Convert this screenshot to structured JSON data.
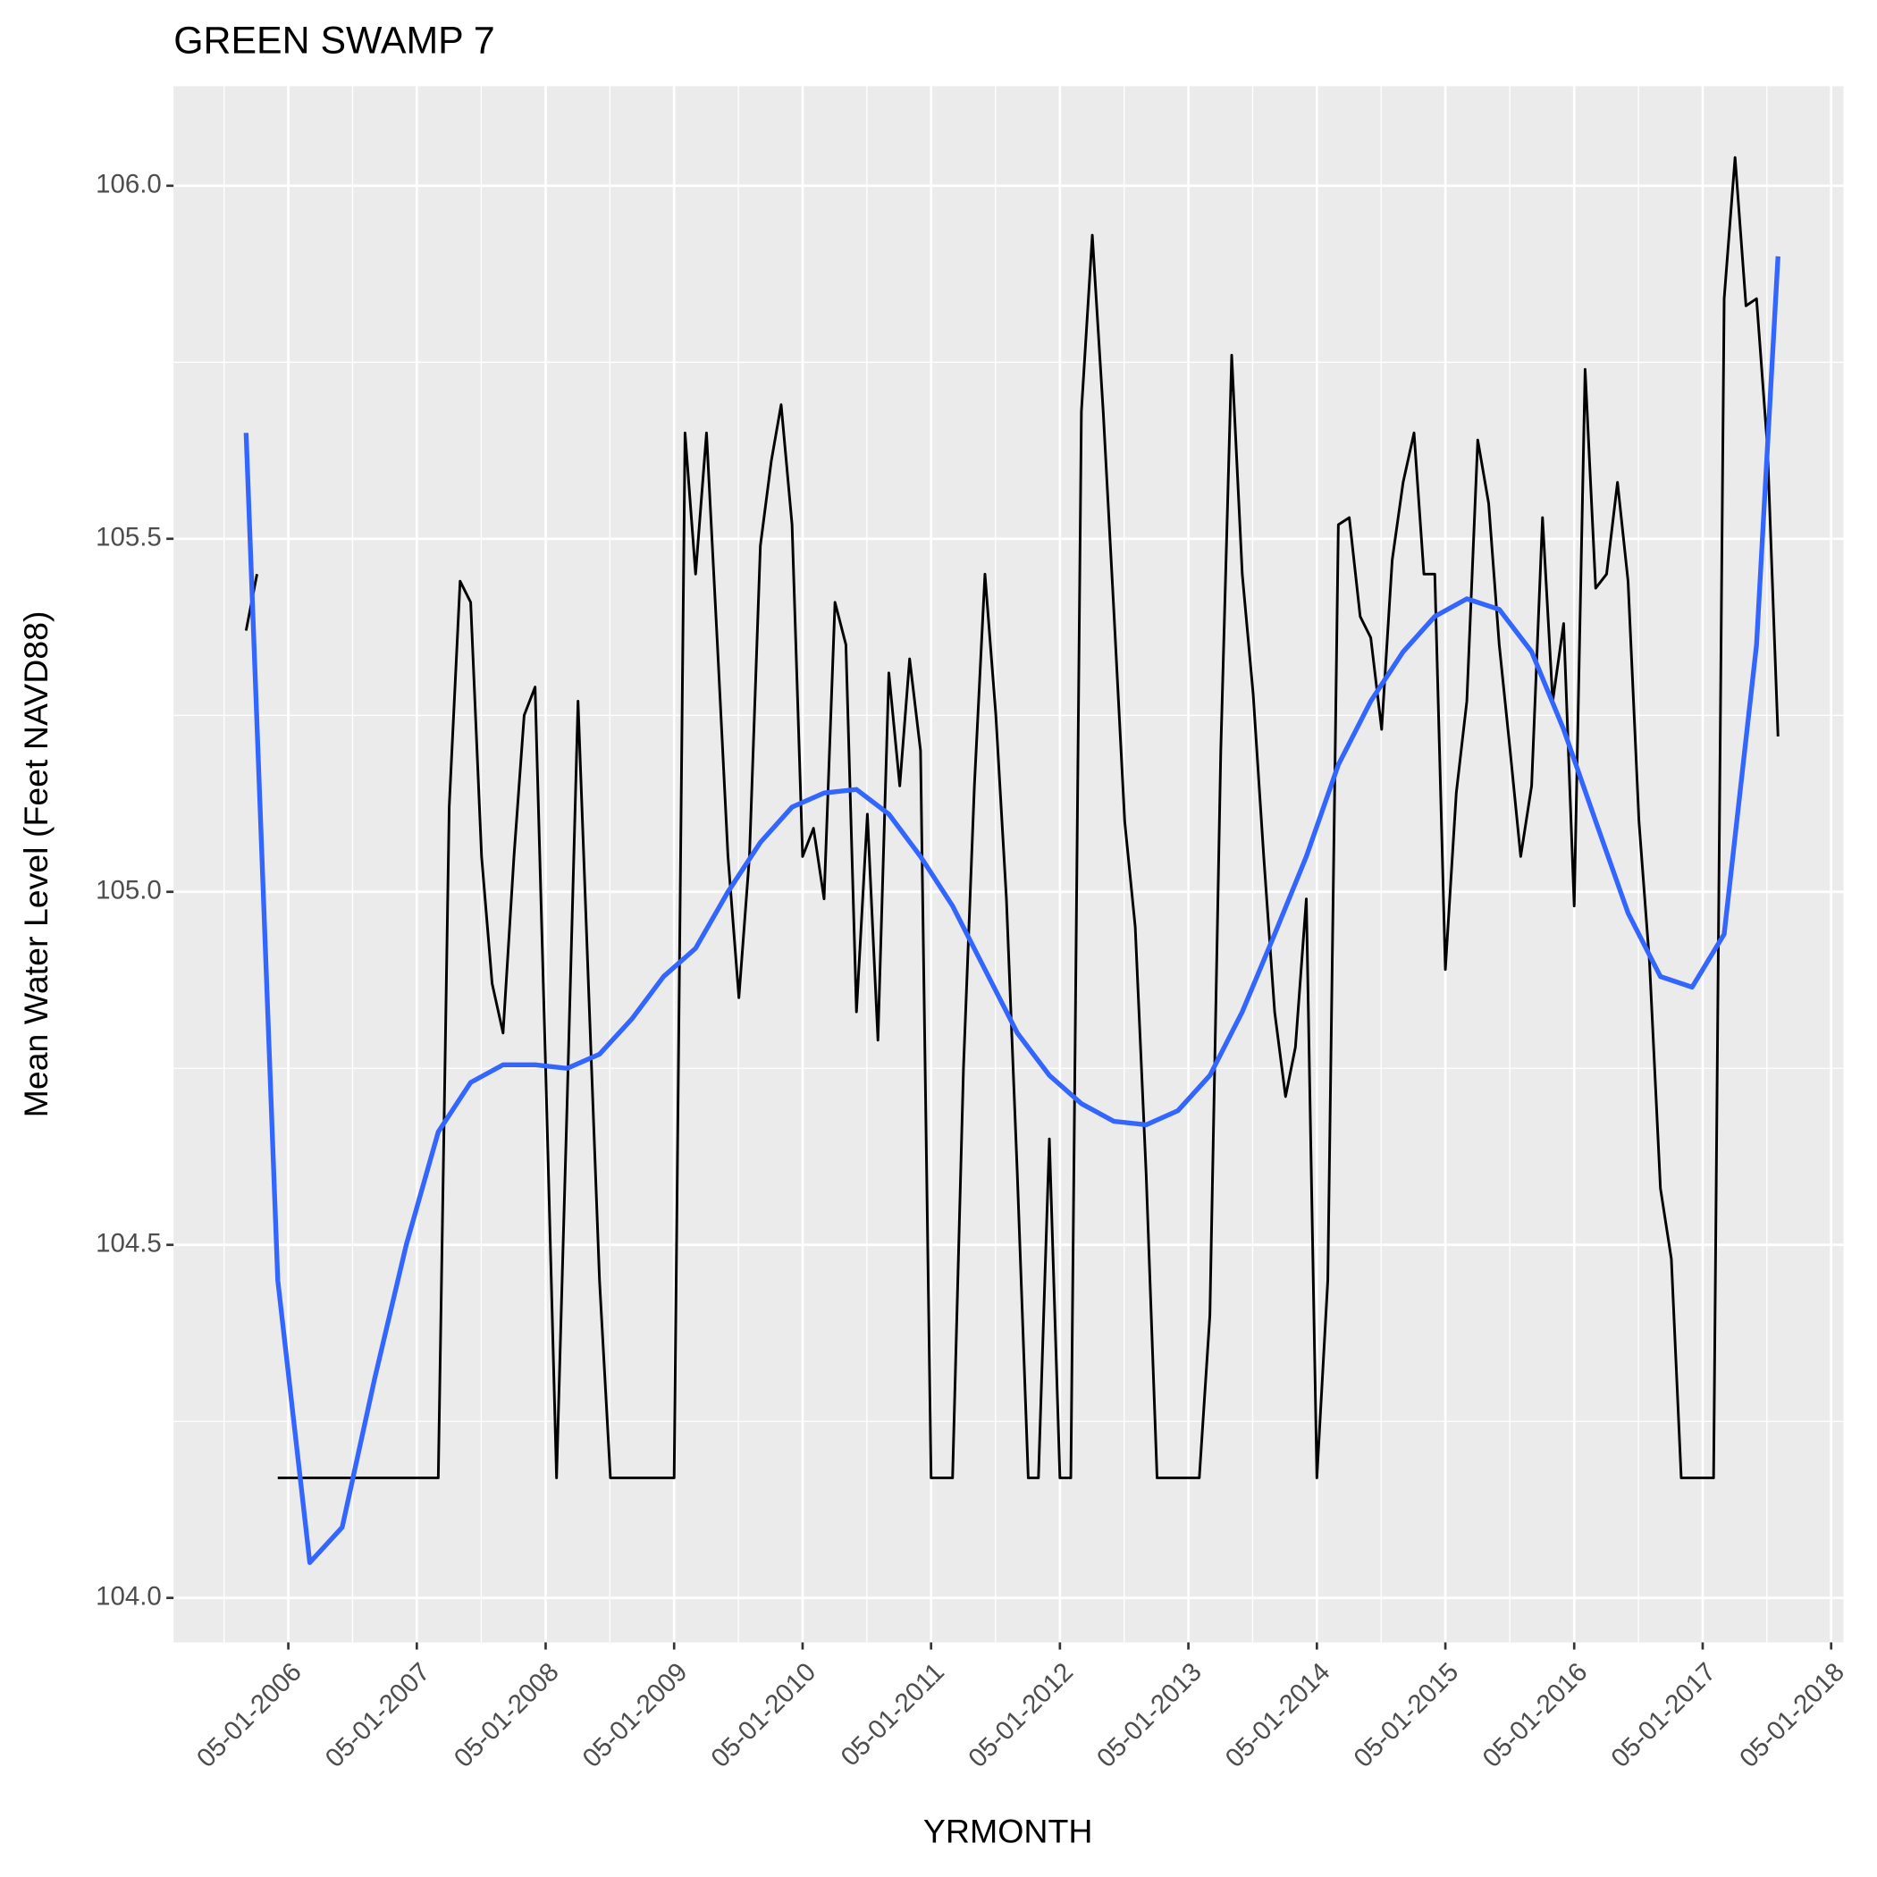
{
  "chart_data": {
    "type": "line",
    "title": "GREEN SWAMP 7",
    "x_label": "YRMONTH",
    "y_label": "Mean Water Level (Feet NAVD88)",
    "grid": true,
    "xlim": [
      "2005-06-09",
      "2018-06-05"
    ],
    "ylim": [
      103.937,
      106.141
    ],
    "xticks": [
      {
        "value": "2006-05-01",
        "label": "05-01-2006"
      },
      {
        "value": "2007-05-01",
        "label": "05-01-2007"
      },
      {
        "value": "2008-05-01",
        "label": "05-01-2008"
      },
      {
        "value": "2009-05-01",
        "label": "05-01-2009"
      },
      {
        "value": "2010-05-01",
        "label": "05-01-2010"
      },
      {
        "value": "2011-05-01",
        "label": "05-01-2011"
      },
      {
        "value": "2012-05-01",
        "label": "05-01-2012"
      },
      {
        "value": "2013-05-01",
        "label": "05-01-2013"
      },
      {
        "value": "2014-05-01",
        "label": "05-01-2014"
      },
      {
        "value": "2015-05-01",
        "label": "05-01-2015"
      },
      {
        "value": "2016-05-01",
        "label": "05-01-2016"
      },
      {
        "value": "2017-05-01",
        "label": "05-01-2017"
      },
      {
        "value": "2018-05-01",
        "label": "05-01-2018"
      }
    ],
    "yticks": [
      {
        "value": 104,
        "label": "104.0"
      },
      {
        "value": 104.5,
        "label": "104.5"
      },
      {
        "value": 105,
        "label": "105.0"
      },
      {
        "value": 105.5,
        "label": "105.5"
      },
      {
        "value": 106,
        "label": "106.0"
      }
    ],
    "x": [
      "2006-01-01",
      "2006-02-01",
      "2006-03-01",
      "2006-04-01",
      "2006-05-01",
      "2006-06-01",
      "2006-07-01",
      "2006-08-01",
      "2006-09-01",
      "2006-10-01",
      "2006-11-01",
      "2006-12-01",
      "2007-01-01",
      "2007-02-01",
      "2007-03-01",
      "2007-04-01",
      "2007-05-01",
      "2007-06-01",
      "2007-07-01",
      "2007-08-01",
      "2007-09-01",
      "2007-10-01",
      "2007-11-01",
      "2007-12-01",
      "2008-01-01",
      "2008-02-01",
      "2008-03-01",
      "2008-04-01",
      "2008-05-01",
      "2008-06-01",
      "2008-07-01",
      "2008-08-01",
      "2008-09-01",
      "2008-10-01",
      "2008-11-01",
      "2008-12-01",
      "2009-01-01",
      "2009-02-01",
      "2009-03-01",
      "2009-04-01",
      "2009-05-01",
      "2009-06-01",
      "2009-07-01",
      "2009-08-01",
      "2009-09-01",
      "2009-10-01",
      "2009-11-01",
      "2009-12-01",
      "2010-01-01",
      "2010-02-01",
      "2010-03-01",
      "2010-04-01",
      "2010-05-01",
      "2010-06-01",
      "2010-07-01",
      "2010-08-01",
      "2010-09-01",
      "2010-10-01",
      "2010-11-01",
      "2010-12-01",
      "2011-01-01",
      "2011-02-01",
      "2011-03-01",
      "2011-04-01",
      "2011-05-01",
      "2011-06-01",
      "2011-07-01",
      "2011-08-01",
      "2011-09-01",
      "2011-10-01",
      "2011-11-01",
      "2011-12-01",
      "2012-01-01",
      "2012-02-01",
      "2012-03-01",
      "2012-04-01",
      "2012-05-01",
      "2012-06-01",
      "2012-07-01",
      "2012-08-01",
      "2012-09-01",
      "2012-10-01",
      "2012-11-01",
      "2012-12-01",
      "2013-01-01",
      "2013-02-01",
      "2013-03-01",
      "2013-04-01",
      "2013-05-01",
      "2013-06-01",
      "2013-07-01",
      "2013-08-01",
      "2013-09-01",
      "2013-10-01",
      "2013-11-01",
      "2013-12-01",
      "2014-01-01",
      "2014-02-01",
      "2014-03-01",
      "2014-04-01",
      "2014-05-01",
      "2014-06-01",
      "2014-07-01",
      "2014-08-01",
      "2014-09-01",
      "2014-10-01",
      "2014-11-01",
      "2014-12-01",
      "2015-01-01",
      "2015-02-01",
      "2015-03-01",
      "2015-04-01",
      "2015-05-01",
      "2015-06-01",
      "2015-07-01",
      "2015-08-01",
      "2015-09-01",
      "2015-10-01",
      "2015-11-01",
      "2015-12-01",
      "2016-01-01",
      "2016-02-01",
      "2016-03-01",
      "2016-04-01",
      "2016-05-01",
      "2016-06-01",
      "2016-07-01",
      "2016-08-01",
      "2016-09-01",
      "2016-10-01",
      "2016-11-01",
      "2016-12-01",
      "2017-01-01",
      "2017-02-01",
      "2017-03-01",
      "2017-04-01",
      "2017-05-01",
      "2017-06-01",
      "2017-07-01",
      "2017-08-01",
      "2017-09-01",
      "2017-10-01",
      "2017-11-01",
      "2017-12-01"
    ],
    "series": [
      {
        "color": "#000000",
        "values": [
          105.37,
          105.45,
          null,
          104.17,
          104.17,
          104.17,
          104.17,
          104.17,
          104.17,
          104.17,
          104.17,
          104.17,
          104.17,
          104.17,
          104.17,
          104.17,
          104.17,
          104.17,
          104.17,
          105.12,
          105.44,
          105.41,
          105.05,
          104.87,
          104.8,
          105.05,
          105.25,
          105.29,
          104.75,
          104.17,
          104.7,
          105.27,
          104.85,
          104.45,
          104.17,
          104.17,
          104.17,
          104.17,
          104.17,
          104.17,
          104.17,
          105.65,
          105.45,
          105.65,
          105.35,
          105.05,
          104.85,
          105.05,
          105.49,
          105.61,
          105.69,
          105.52,
          105.05,
          105.09,
          104.99,
          105.41,
          105.35,
          104.83,
          105.11,
          104.79,
          105.31,
          105.15,
          105.33,
          105.2,
          104.17,
          104.17,
          104.17,
          104.75,
          105.15,
          105.45,
          105.25,
          104.99,
          104.6,
          104.17,
          104.17,
          104.65,
          104.17,
          104.17,
          105.68,
          105.93,
          105.68,
          105.4,
          105.1,
          104.95,
          104.6,
          104.17,
          104.17,
          104.17,
          104.17,
          104.17,
          104.4,
          105.2,
          105.76,
          105.45,
          105.28,
          105.05,
          104.83,
          104.71,
          104.78,
          104.99,
          104.17,
          104.45,
          105.52,
          105.53,
          105.39,
          105.36,
          105.23,
          105.47,
          105.58,
          105.65,
          105.45,
          105.45,
          104.89,
          105.14,
          105.27,
          105.64,
          105.55,
          105.35,
          105.2,
          105.05,
          105.15,
          105.53,
          105.27,
          105.38,
          104.98,
          105.74,
          105.43,
          105.45,
          105.58,
          105.44,
          105.1,
          104.9,
          104.58,
          104.48,
          104.17,
          104.17,
          104.17,
          104.17,
          105.84,
          106.04,
          105.83,
          105.84,
          105.63,
          105.22
        ]
      },
      {
        "color": "#3366FF",
        "x": [
          "2006-01-01",
          "2006-04-01",
          "2006-07-01",
          "2006-10-01",
          "2007-01-01",
          "2007-04-01",
          "2007-07-01",
          "2007-10-01",
          "2008-01-01",
          "2008-04-01",
          "2008-07-01",
          "2008-10-01",
          "2009-01-01",
          "2009-04-01",
          "2009-07-01",
          "2009-10-01",
          "2010-01-01",
          "2010-04-01",
          "2010-07-01",
          "2010-10-01",
          "2011-01-01",
          "2011-04-01",
          "2011-07-01",
          "2011-10-01",
          "2012-01-01",
          "2012-04-01",
          "2012-07-01",
          "2012-10-01",
          "2013-01-01",
          "2013-04-01",
          "2013-07-01",
          "2013-10-01",
          "2014-01-01",
          "2014-04-01",
          "2014-07-01",
          "2014-10-01",
          "2015-01-01",
          "2015-04-01",
          "2015-07-01",
          "2015-10-01",
          "2016-01-01",
          "2016-04-01",
          "2016-07-01",
          "2016-10-01",
          "2017-01-01",
          "2017-04-01",
          "2017-07-01",
          "2017-10-01",
          "2017-12-01"
        ],
        "values": [
          105.65,
          104.45,
          104.05,
          104.1,
          104.31,
          104.5,
          104.66,
          104.73,
          104.755,
          104.755,
          104.75,
          104.77,
          104.82,
          104.88,
          104.92,
          105.0,
          105.07,
          105.12,
          105.14,
          105.145,
          105.11,
          105.05,
          104.98,
          104.89,
          104.8,
          104.74,
          104.7,
          104.675,
          104.67,
          104.69,
          104.74,
          104.83,
          104.94,
          105.05,
          105.18,
          105.27,
          105.34,
          105.39,
          105.415,
          105.4,
          105.34,
          105.23,
          105.1,
          104.97,
          104.88,
          104.865,
          104.94,
          105.35,
          105.9
        ]
      }
    ]
  }
}
